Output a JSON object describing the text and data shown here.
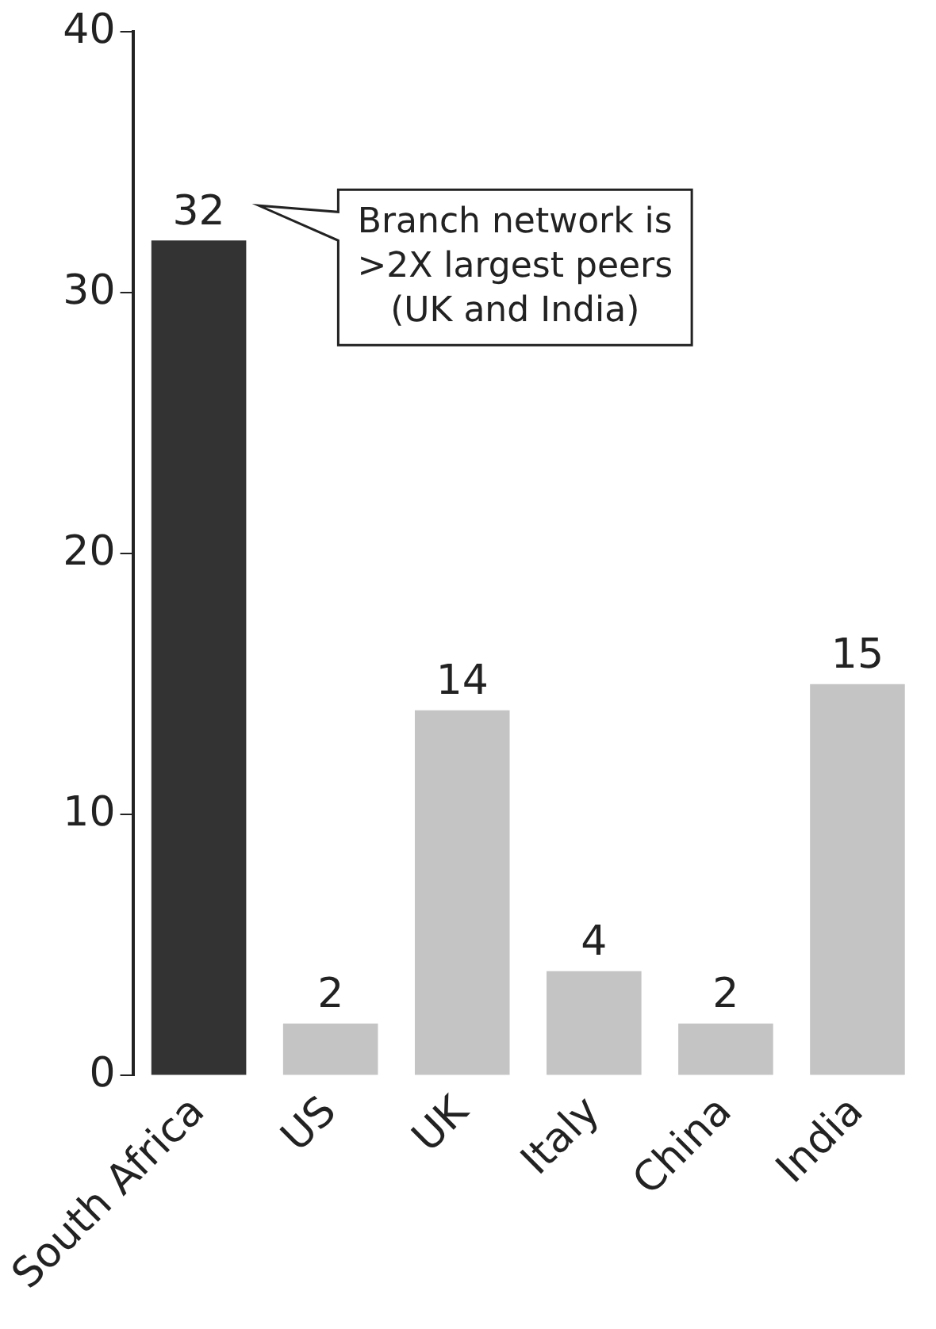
{
  "chart_data": {
    "type": "bar",
    "categories": [
      "South Africa",
      "US",
      "UK",
      "Italy",
      "China",
      "India"
    ],
    "values": [
      32,
      2,
      14,
      4,
      2,
      15
    ],
    "colors": [
      "#333333",
      "#c4c4c4",
      "#c4c4c4",
      "#c4c4c4",
      "#c4c4c4",
      "#c4c4c4"
    ],
    "ylim": [
      0,
      40
    ],
    "yticks": [
      0,
      10,
      20,
      30,
      40
    ],
    "grid": false,
    "legend": false,
    "data_labels": true,
    "annotations": [
      "Branch network is\n>2X largest peers\n(UK and India)"
    ]
  }
}
